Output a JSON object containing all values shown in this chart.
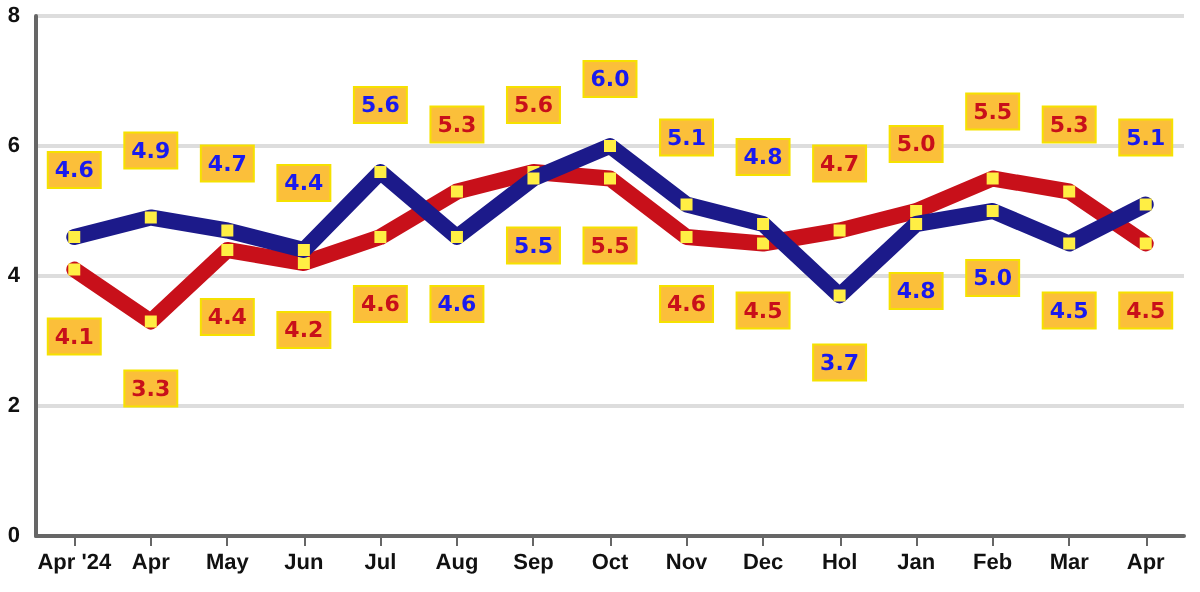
{
  "chart_data": {
    "type": "line",
    "categories": [
      "Apr '24",
      "Apr",
      "May",
      "Jun",
      "Jul",
      "Aug",
      "Sep",
      "Oct",
      "Nov",
      "Dec",
      "Hol",
      "Jan",
      "Feb",
      "Mar",
      "Apr"
    ],
    "series": [
      {
        "color": "#c8101a",
        "values": [
          4.1,
          3.3,
          4.4,
          4.2,
          4.6,
          5.3,
          5.6,
          5.5,
          4.6,
          4.5,
          4.7,
          5.0,
          5.5,
          5.3,
          4.5
        ],
        "value_labels": [
          "4.1",
          "3.3",
          "4.4",
          "4.2",
          "4.6",
          "5.3",
          "5.6",
          "5.5",
          "4.6",
          "4.5",
          "4.7",
          "5.0",
          "5.5",
          "5.3",
          "4.5"
        ]
      },
      {
        "color": "#1c1a8a",
        "values": [
          4.6,
          4.9,
          4.7,
          4.4,
          5.6,
          4.6,
          5.5,
          6.0,
          5.1,
          4.8,
          3.7,
          4.8,
          5.0,
          4.5,
          5.1
        ],
        "value_labels": [
          "4.6",
          "4.9",
          "4.7",
          "4.4",
          "5.6",
          "4.6",
          "5.5",
          "6.0",
          "5.1",
          "4.8",
          "3.7",
          "4.8",
          "5.0",
          "4.5",
          "5.1"
        ]
      }
    ],
    "ylim": [
      0,
      8
    ],
    "yticks": [
      0,
      2,
      4,
      6,
      8
    ],
    "grid": "y",
    "marker": "square",
    "line_style": "solid"
  }
}
